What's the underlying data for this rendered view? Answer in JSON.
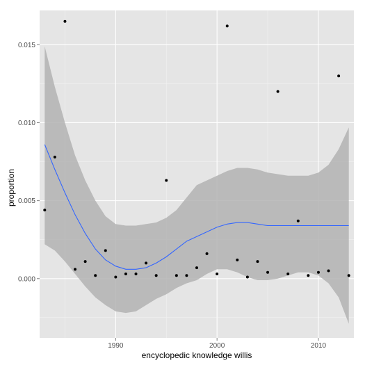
{
  "chart_data": {
    "type": "scatter",
    "title": "",
    "xlabel": "encyclopedic knowledge willis",
    "ylabel": "proportion",
    "xlim": [
      1982.5,
      2013.5
    ],
    "ylim": [
      -0.0038,
      0.0172
    ],
    "x_ticks": [
      1990,
      2000,
      2010
    ],
    "x_tick_labels": [
      "1990",
      "2000",
      "2010"
    ],
    "y_ticks": [
      0.0,
      0.005,
      0.01,
      0.015
    ],
    "y_tick_labels": [
      "0.000",
      "0.005",
      "0.010",
      "0.015"
    ],
    "grid": true,
    "legend": "none",
    "colors": {
      "panel": "#e5e5e5",
      "grid_major": "#ffffff",
      "grid_minor": "#f2f2f2",
      "points": "#000000",
      "smooth_line": "#3366ff",
      "ribbon": "#b3b3b3"
    },
    "points": [
      {
        "x": 1983,
        "y": 0.0044
      },
      {
        "x": 1984,
        "y": 0.0078
      },
      {
        "x": 1985,
        "y": 0.0165
      },
      {
        "x": 1986,
        "y": 0.0006
      },
      {
        "x": 1987,
        "y": 0.0011
      },
      {
        "x": 1988,
        "y": 0.0002
      },
      {
        "x": 1989,
        "y": 0.0018
      },
      {
        "x": 1990,
        "y": 0.0001
      },
      {
        "x": 1991,
        "y": 0.0003
      },
      {
        "x": 1992,
        "y": 0.0003
      },
      {
        "x": 1993,
        "y": 0.001
      },
      {
        "x": 1994,
        "y": 0.0002
      },
      {
        "x": 1995,
        "y": 0.0063
      },
      {
        "x": 1996,
        "y": 0.0002
      },
      {
        "x": 1997,
        "y": 0.0002
      },
      {
        "x": 1998,
        "y": 0.0007
      },
      {
        "x": 1999,
        "y": 0.0016
      },
      {
        "x": 2000,
        "y": 0.0003
      },
      {
        "x": 2001,
        "y": 0.0162
      },
      {
        "x": 2002,
        "y": 0.0012
      },
      {
        "x": 2003,
        "y": 0.0001
      },
      {
        "x": 2004,
        "y": 0.0011
      },
      {
        "x": 2005,
        "y": 0.0004
      },
      {
        "x": 2006,
        "y": 0.012
      },
      {
        "x": 2007,
        "y": 0.0003
      },
      {
        "x": 2008,
        "y": 0.0037
      },
      {
        "x": 2009,
        "y": 0.0002
      },
      {
        "x": 2010,
        "y": 0.0004
      },
      {
        "x": 2011,
        "y": 0.0005
      },
      {
        "x": 2012,
        "y": 0.013
      },
      {
        "x": 2013,
        "y": 0.0002
      }
    ],
    "smooth": {
      "x": [
        1983,
        1984,
        1985,
        1986,
        1987,
        1988,
        1989,
        1990,
        1991,
        1992,
        1993,
        1994,
        1995,
        1996,
        1997,
        1998,
        1999,
        2000,
        2001,
        2002,
        2003,
        2004,
        2005,
        2006,
        2007,
        2008,
        2009,
        2010,
        2011,
        2012,
        2013
      ],
      "y": [
        0.0086,
        0.007,
        0.0055,
        0.0041,
        0.0029,
        0.0019,
        0.0012,
        0.0008,
        0.0006,
        0.0006,
        0.0007,
        0.001,
        0.0014,
        0.0019,
        0.0024,
        0.0027,
        0.003,
        0.0033,
        0.0035,
        0.0036,
        0.0036,
        0.0035,
        0.0034,
        0.0034,
        0.0034,
        0.0034,
        0.0034,
        0.0034,
        0.0034,
        0.0034,
        0.0034
      ],
      "lower": [
        0.0022,
        0.0018,
        0.0011,
        0.0003,
        -0.0005,
        -0.0012,
        -0.0017,
        -0.0021,
        -0.0022,
        -0.0021,
        -0.0017,
        -0.0013,
        -0.001,
        -0.0006,
        -0.0003,
        -0.0001,
        0.0003,
        0.0006,
        0.0006,
        0.0004,
        0.0001,
        -0.0001,
        -0.0001,
        0.0,
        0.0002,
        0.0004,
        0.0004,
        0.0002,
        -0.0003,
        -0.0012,
        -0.0029
      ],
      "upper": [
        0.0149,
        0.0123,
        0.01,
        0.0079,
        0.0063,
        0.005,
        0.004,
        0.0035,
        0.0034,
        0.0034,
        0.0035,
        0.0036,
        0.0039,
        0.0044,
        0.0052,
        0.006,
        0.0063,
        0.0066,
        0.0069,
        0.0071,
        0.0071,
        0.007,
        0.0068,
        0.0067,
        0.0066,
        0.0066,
        0.0066,
        0.0068,
        0.0073,
        0.0083,
        0.0097
      ]
    }
  }
}
